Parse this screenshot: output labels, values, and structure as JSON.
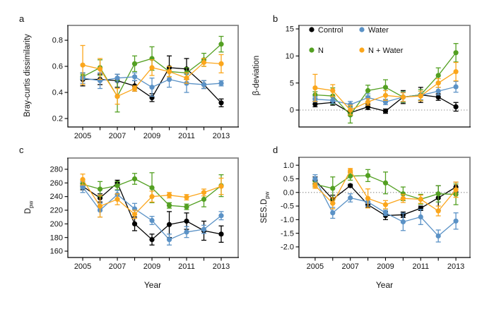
{
  "figure": {
    "xlabel": "Year",
    "background": "#ffffff"
  },
  "colors": {
    "control": "#000000",
    "water": "#5b92c6",
    "n": "#53a022",
    "n_water": "#fba61c",
    "box_gray": "#828282",
    "axis_black": "#000000",
    "zero_line": "#8c8c8c",
    "tick_text": "#111111"
  },
  "legend": {
    "items": [
      {
        "label": "Control",
        "color_key": "control"
      },
      {
        "label": "Water",
        "color_key": "water"
      },
      {
        "label": "N",
        "color_key": "n"
      },
      {
        "label": "N + Water",
        "color_key": "n_water"
      }
    ]
  },
  "chart_data": [
    {
      "id": "a",
      "panel_label": "a",
      "type": "line",
      "ylabel": {
        "main": "Bray-curtis dissimilarity",
        "sub": ""
      },
      "x": [
        2005,
        2006,
        2007,
        2008,
        2009,
        2010,
        2011,
        2012,
        2013
      ],
      "xtick_labels": [
        2005,
        2007,
        2009,
        2011,
        2013
      ],
      "xlim": [
        2004.14,
        2013.98
      ],
      "ylim": [
        0.135,
        0.914
      ],
      "yticks": [
        0.2,
        0.4,
        0.6,
        0.8
      ],
      "ytick_labels": [
        "0.2",
        "0.4",
        "0.6",
        "0.8"
      ],
      "zero_line": false,
      "show_legend": false,
      "x_axis": true,
      "series": [
        {
          "name": "Control",
          "color_key": "control",
          "values": [
            0.5,
            0.5,
            0.49,
            0.45,
            0.36,
            0.59,
            0.58,
            0.46,
            0.32
          ],
          "errors": [
            0.05,
            0.04,
            0.05,
            0.04,
            0.03,
            0.09,
            0.08,
            0.03,
            0.03
          ]
        },
        {
          "name": "N",
          "color_key": "n",
          "values": [
            0.52,
            0.59,
            0.37,
            0.62,
            0.66,
            0.56,
            0.55,
            0.65,
            0.77
          ],
          "errors": [
            0.02,
            0.06,
            0.12,
            0.06,
            0.09,
            0.04,
            0.04,
            0.05,
            0.06
          ]
        },
        {
          "name": "Water",
          "color_key": "water",
          "values": [
            0.51,
            0.49,
            0.51,
            0.52,
            0.44,
            0.5,
            0.47,
            0.46,
            0.47
          ],
          "errors": [
            0.04,
            0.06,
            0.03,
            0.03,
            0.07,
            0.06,
            0.07,
            0.03,
            0.02
          ]
        },
        {
          "name": "N + Water",
          "color_key": "n_water",
          "values": [
            0.61,
            0.58,
            0.37,
            0.43,
            0.59,
            0.56,
            0.51,
            0.63,
            0.62
          ],
          "errors": [
            0.15,
            0.08,
            0.06,
            0.02,
            0.06,
            0.04,
            0.04,
            0.03,
            0.07
          ]
        }
      ]
    },
    {
      "id": "b",
      "panel_label": "b",
      "type": "line",
      "ylabel": {
        "main": "β-deviation",
        "sub": ""
      },
      "x": [
        2005,
        2006,
        2007,
        2008,
        2009,
        2010,
        2011,
        2012,
        2013
      ],
      "xtick_labels": [],
      "xlim": [
        2004.08,
        2013.8
      ],
      "ylim": [
        -3.13,
        15.65
      ],
      "yticks": [
        0,
        5,
        10,
        15
      ],
      "ytick_labels": [
        "0",
        "5",
        "10",
        "15"
      ],
      "zero_line": true,
      "show_legend": true,
      "x_axis": false,
      "series": [
        {
          "name": "Control",
          "color_key": "control",
          "values": [
            1.1,
            1.4,
            -0.5,
            0.6,
            -0.2,
            2.4,
            2.8,
            2.4,
            0.6
          ],
          "errors": [
            0.5,
            0.5,
            0.5,
            0.5,
            0.4,
            1.2,
            1.4,
            0.6,
            0.8
          ]
        },
        {
          "name": "N",
          "color_key": "n",
          "values": [
            2.8,
            2.6,
            -0.9,
            3.6,
            4.2,
            2.4,
            2.8,
            6.4,
            10.6
          ],
          "errors": [
            0.6,
            1.5,
            1.5,
            1.0,
            1.4,
            1.0,
            1.0,
            1.4,
            1.7
          ]
        },
        {
          "name": "Water",
          "color_key": "water",
          "values": [
            2.0,
            1.8,
            1.0,
            2.3,
            1.5,
            2.4,
            2.7,
            3.5,
            4.3
          ],
          "errors": [
            0.5,
            0.6,
            0.6,
            0.7,
            0.5,
            0.9,
            0.8,
            0.7,
            1.0
          ]
        },
        {
          "name": "N + Water",
          "color_key": "n_water",
          "values": [
            4.1,
            3.6,
            0.0,
            1.5,
            2.7,
            2.4,
            2.6,
            5.0,
            7.1
          ],
          "errors": [
            2.5,
            1.1,
            0.9,
            0.6,
            0.9,
            0.8,
            0.9,
            0.8,
            1.7
          ]
        }
      ]
    },
    {
      "id": "c",
      "panel_label": "c",
      "type": "line",
      "ylabel": {
        "main": "D",
        "sub": "pw"
      },
      "x": [
        2005,
        2006,
        2007,
        2008,
        2009,
        2010,
        2011,
        2012,
        2013
      ],
      "xtick_labels": [
        2005,
        2007,
        2009,
        2011,
        2013
      ],
      "xlim": [
        2004.14,
        2013.98
      ],
      "ylim": [
        150.7,
        296.5
      ],
      "yticks": [
        160,
        180,
        200,
        220,
        240,
        260,
        280
      ],
      "ytick_labels": [
        "160",
        "180",
        "200",
        "220",
        "240",
        "260",
        "280"
      ],
      "zero_line": false,
      "show_legend": false,
      "x_axis": true,
      "series": [
        {
          "name": "Control",
          "color_key": "control",
          "values": [
            255,
            238,
            260,
            200,
            177,
            199,
            204,
            190,
            185
          ],
          "errors": [
            5,
            6,
            4,
            10,
            8,
            19,
            12,
            14,
            12
          ]
        },
        {
          "name": "N",
          "color_key": "n",
          "values": [
            258,
            251,
            256,
            266,
            253,
            227,
            225,
            236,
            256
          ],
          "errors": [
            6,
            11,
            6,
            8,
            22,
            4,
            4,
            11,
            16
          ]
        },
        {
          "name": "Water",
          "color_key": "water",
          "values": [
            254,
            220,
            243,
            222,
            205,
            177,
            188,
            192,
            212
          ],
          "errors": [
            8,
            10,
            6,
            8,
            6,
            8,
            8,
            6,
            6
          ]
        },
        {
          "name": "N + Water",
          "color_key": "n_water",
          "values": [
            265,
            226,
            236,
            214,
            240,
            242,
            239,
            246,
            255
          ],
          "errors": [
            8,
            16,
            8,
            6,
            8,
            4,
            4,
            5,
            12
          ]
        }
      ]
    },
    {
      "id": "d",
      "panel_label": "d",
      "type": "line",
      "ylabel": {
        "main": "SES.D",
        "sub": "pw"
      },
      "x": [
        2005,
        2006,
        2007,
        2008,
        2009,
        2010,
        2011,
        2012,
        2013
      ],
      "xtick_labels": [
        2005,
        2007,
        2009,
        2011,
        2013
      ],
      "xlim": [
        2004.08,
        2013.8
      ],
      "ylim": [
        -2.39,
        1.29
      ],
      "yticks": [
        -2.0,
        -1.5,
        -1.0,
        -0.5,
        0.0,
        0.5,
        1.0
      ],
      "ytick_labels": [
        "-2.0",
        "-1.5",
        "-1.0",
        "-0.5",
        "0.0",
        "0.5",
        "1.0"
      ],
      "zero_line": true,
      "show_legend": false,
      "x_axis": true,
      "series": [
        {
          "name": "Control",
          "color_key": "control",
          "values": [
            0.45,
            -0.25,
            0.25,
            -0.45,
            -0.85,
            -0.82,
            -0.58,
            -0.2,
            0.2
          ],
          "errors": [
            0.12,
            0.15,
            0.05,
            0.1,
            0.15,
            0.1,
            0.08,
            0.45,
            0.18
          ]
        },
        {
          "name": "N",
          "color_key": "n",
          "values": [
            0.3,
            0.15,
            0.6,
            0.62,
            0.35,
            -0.05,
            -0.25,
            -0.05,
            -0.07
          ],
          "errors": [
            0.1,
            0.42,
            0.15,
            0.22,
            0.4,
            0.25,
            0.18,
            0.3,
            0.38
          ]
        },
        {
          "name": "Water",
          "color_key": "water",
          "values": [
            0.5,
            -0.75,
            -0.2,
            -0.35,
            -0.75,
            -1.08,
            -0.9,
            -1.6,
            -1.05
          ],
          "errors": [
            0.15,
            0.2,
            0.15,
            0.15,
            0.1,
            0.32,
            0.28,
            0.22,
            0.3
          ]
        },
        {
          "name": "N + Water",
          "color_key": "n_water",
          "values": [
            0.25,
            -0.4,
            0.8,
            -0.22,
            -0.45,
            -0.22,
            -0.25,
            -0.68,
            0.1
          ],
          "errors": [
            0.1,
            0.2,
            0.08,
            0.35,
            0.15,
            0.15,
            0.15,
            0.18,
            0.28
          ]
        }
      ]
    }
  ]
}
